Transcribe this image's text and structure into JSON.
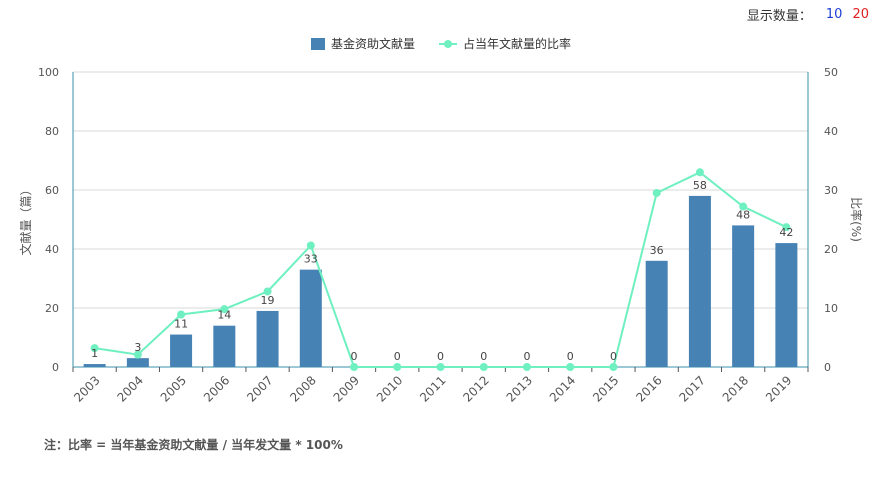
{
  "controls": {
    "display_count_label": "显示数量：",
    "options": [
      "10",
      "20"
    ]
  },
  "note": "注：比率 = 当年基金资助文献量 / 当年发文量 * 100%",
  "chart_data": {
    "type": "bar",
    "categories": [
      "2003",
      "2004",
      "2005",
      "2006",
      "2007",
      "2008",
      "2009",
      "2010",
      "2011",
      "2012",
      "2013",
      "2014",
      "2015",
      "2016",
      "2017",
      "2018",
      "2019"
    ],
    "series": [
      {
        "name": "基金资助文献量",
        "type": "bar",
        "axis": "left",
        "color": "#4682b4",
        "values": [
          1,
          3,
          11,
          14,
          19,
          33,
          0,
          0,
          0,
          0,
          0,
          0,
          0,
          36,
          58,
          48,
          42
        ]
      },
      {
        "name": "占当年文献量的比率",
        "type": "line",
        "axis": "right",
        "color": "#6ff0c0",
        "values": [
          3.2,
          2.1,
          8.9,
          9.8,
          12.8,
          20.6,
          0,
          0,
          0,
          0,
          0,
          0,
          0,
          29.5,
          33.0,
          27.2,
          23.7
        ]
      }
    ],
    "ylabel": "文献量（篇）",
    "y2label": "比率(%)",
    "ylim": [
      0,
      100
    ],
    "y2lim": [
      0,
      50
    ],
    "yticks": [
      "0",
      "20",
      "40",
      "60",
      "80",
      "100"
    ],
    "y2ticks": [
      "0",
      "10",
      "20",
      "30",
      "40",
      "50"
    ],
    "grid": true,
    "legend_position": "top-center"
  }
}
